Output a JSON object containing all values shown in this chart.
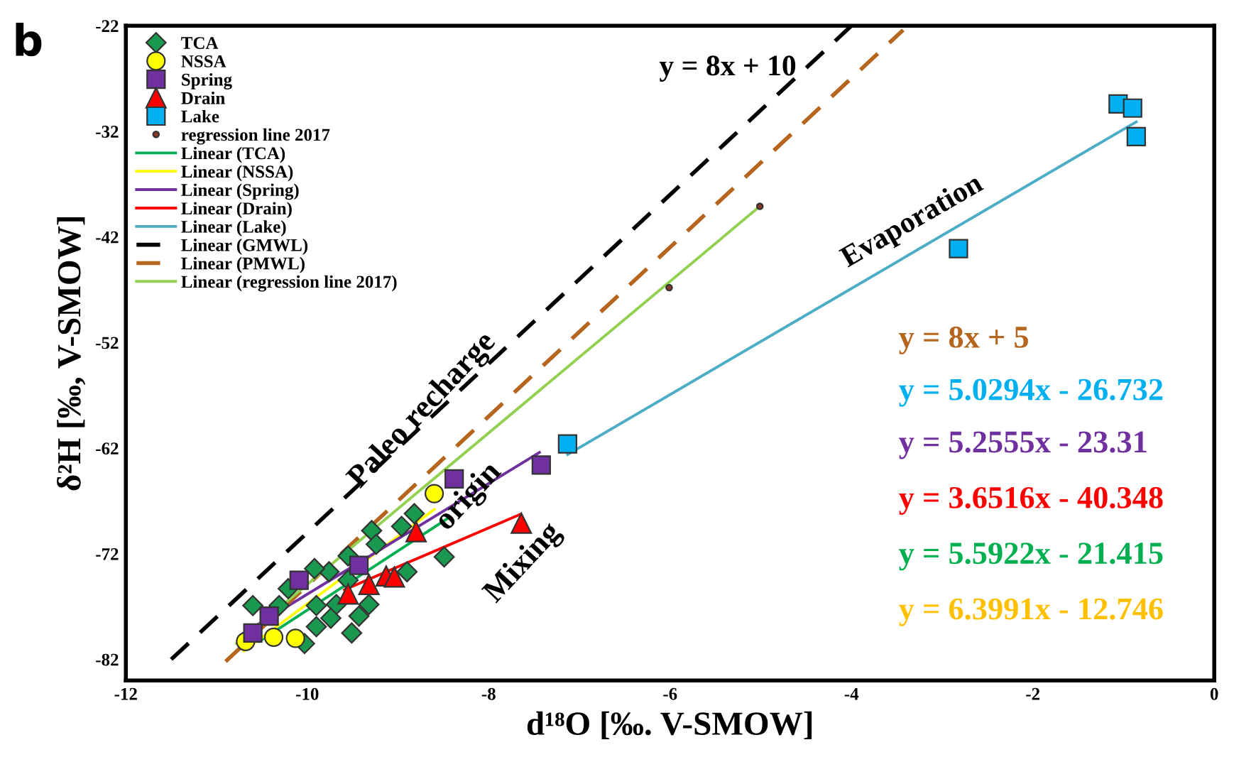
{
  "chart_data": {
    "type": "scatter",
    "xlabel": "d¹⁸O [‰. V-SMOW]",
    "ylabel": "δ²H [‰, V-SMOW]",
    "xlim": [
      -12,
      0
    ],
    "xticks": [
      -12,
      -10,
      -8,
      -6,
      -4,
      -2,
      0
    ],
    "ylim": [
      -84,
      -22
    ],
    "yticks": [
      -82,
      -72,
      -62,
      -52,
      -42,
      -32,
      -22
    ],
    "grid": false,
    "legend": "top left",
    "series": [
      {
        "name": "TCA",
        "marker": "diamond",
        "color": "#1a9850",
        "x": [
          -8.82,
          -8.96,
          -9.29,
          -9.24,
          -9.55,
          -8.49,
          -8.9,
          -9.76,
          -9.92,
          -10.21,
          -10.6,
          -10.31,
          -9.9,
          -9.68,
          -9.32,
          -9.43,
          -9.9,
          -9.51,
          -10.03,
          -9.74,
          -9.55
        ],
        "values": [
          -68.2,
          -69.4,
          -69.8,
          -71.1,
          -72.2,
          -72.3,
          -73.7,
          -73.7,
          -73.4,
          -75.3,
          -76.9,
          -76.9,
          -76.9,
          -76.8,
          -76.8,
          -77.9,
          -78.9,
          -79.5,
          -80.5,
          -78.1,
          -74.5
        ]
      },
      {
        "name": "NSSA",
        "marker": "circle",
        "color": "#ffff00",
        "x": [
          -8.6,
          -10.13,
          -10.68,
          -10.37
        ],
        "values": [
          -66.3,
          -80.0,
          -80.3,
          -79.9
        ]
      },
      {
        "name": "Spring",
        "marker": "square",
        "color": "#7030a0",
        "x": [
          -8.38,
          -7.42,
          -10.09,
          -10.42,
          -10.6,
          -9.43
        ],
        "values": [
          -64.9,
          -63.6,
          -74.5,
          -77.9,
          -79.5,
          -73.1
        ]
      },
      {
        "name": "Drain",
        "marker": "triangle",
        "color": "#ff0000",
        "x": [
          -7.64,
          -8.8,
          -9.13,
          -9.04,
          -9.32,
          -9.55
        ],
        "values": [
          -69.1,
          -69.9,
          -74.1,
          -74.2,
          -74.9,
          -75.8
        ]
      },
      {
        "name": "Lake",
        "marker": "square",
        "color": "#00b0f0",
        "x": [
          -1.06,
          -0.9,
          -0.86,
          -2.82,
          -7.13
        ],
        "values": [
          -29.4,
          -29.8,
          -32.5,
          -43.1,
          -61.6
        ]
      },
      {
        "name": "regression line 2017",
        "marker": "circle",
        "color": "#8b3a2a",
        "x": [
          -5.01,
          -6.01
        ],
        "values": [
          -39.1,
          -46.8
        ]
      },
      {
        "name": "Linear (TCA)",
        "type": "line",
        "line_style": "solid",
        "color": "#00b050",
        "x": [
          -10.53,
          -8.46
        ],
        "values": [
          -80.3,
          -68.7
        ]
      },
      {
        "name": "Linear (NSSA)",
        "type": "line",
        "line_style": "solid",
        "color": "#ffff00",
        "x": [
          -10.7,
          -8.6
        ],
        "values": [
          -81.2,
          -67.8
        ]
      },
      {
        "name": "Linear (Spring)",
        "type": "line",
        "line_style": "solid",
        "color": "#7030a0",
        "x": [
          -10.7,
          -7.44
        ],
        "values": [
          -79.5,
          -62.4
        ]
      },
      {
        "name": "Linear (Drain)",
        "type": "line",
        "line_style": "solid",
        "color": "#ff0000",
        "x": [
          -9.59,
          -7.66
        ],
        "values": [
          -75.4,
          -68.3
        ]
      },
      {
        "name": "Linear (Lake)",
        "type": "line",
        "line_style": "solid",
        "color": "#4bacc6",
        "x": [
          -7.13,
          -0.86
        ],
        "values": [
          -62.6,
          -31.1
        ]
      },
      {
        "name": "Linear (GMWL)",
        "type": "line",
        "line_style": "dashed",
        "color": "#000000",
        "x": [
          -11.5,
          -4.0
        ],
        "values": [
          -82.0,
          -22.0
        ]
      },
      {
        "name": "Linear (PMWL)",
        "type": "line",
        "line_style": "dashed",
        "color": "#b5651d",
        "x": [
          -10.9,
          -3.43
        ],
        "values": [
          -82.2,
          -22.4
        ]
      },
      {
        "name": "Linear (regression line 2017)",
        "type": "line",
        "line_style": "solid",
        "color": "#92d050",
        "x": [
          -10.78,
          -5.01
        ],
        "values": [
          -80.5,
          -39.1
        ]
      }
    ],
    "annotations": [
      "b",
      "y = 8x + 10",
      "Paleo recharge",
      "origin",
      "Mixing",
      "Evaporation",
      "y = 8x + 5",
      "y = 5.0294x - 26.732",
      "y = 5.2555x - 23.31",
      "y = 3.6516x - 40.348",
      "y = 5.5922x - 21.415",
      "y = 6.3991x - 12.746"
    ]
  }
}
